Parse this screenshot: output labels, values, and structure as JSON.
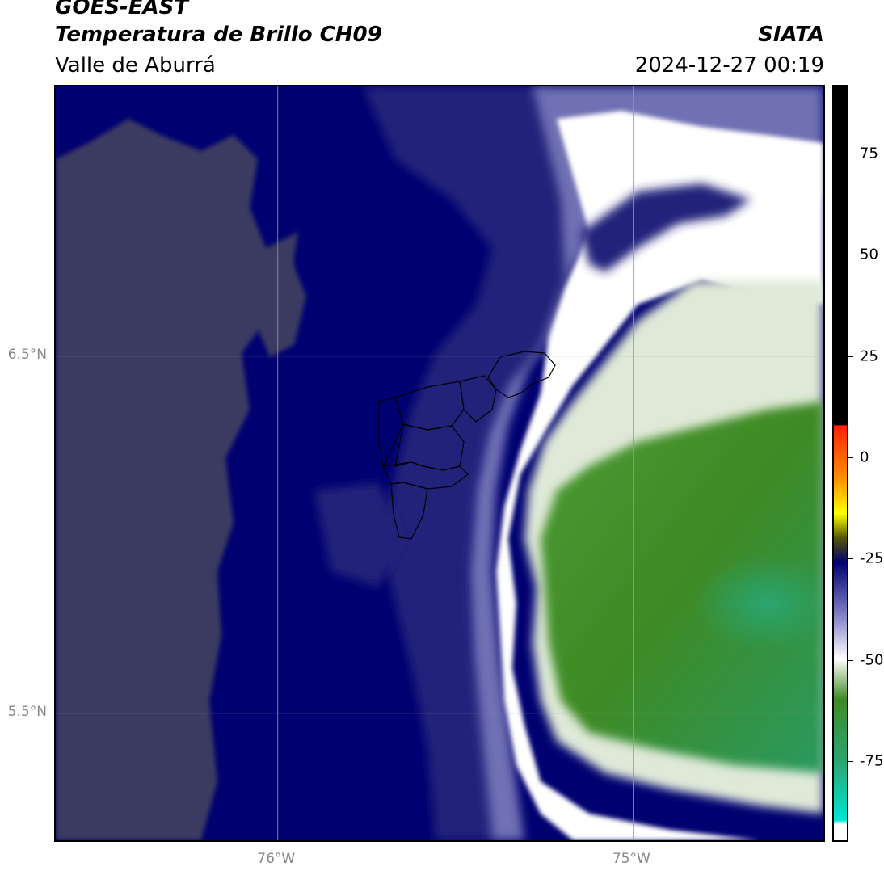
{
  "titles": {
    "satellite": "GOES-EAST",
    "product": "Temperatura de Brillo CH09",
    "region": "Valle de Aburrá",
    "organization": "SIATA",
    "timestamp": "2024-12-27 00:19"
  },
  "map": {
    "lat_ticks": [
      {
        "label": "6.5°N",
        "value": 6.5
      },
      {
        "label": "5.5°N",
        "value": 5.5
      }
    ],
    "lon_ticks": [
      {
        "label": "76°W",
        "value": -76.0
      },
      {
        "label": "75°W",
        "value": -75.0
      }
    ],
    "extent": {
      "lon_min": -76.625,
      "lon_max": -74.455,
      "lat_min": 5.135,
      "lat_max": 7.255
    },
    "grid": true,
    "colors": {
      "dark_navy": "#000070",
      "mid_blue": "#23237a",
      "grey_blue": "#3b3b62",
      "white": "#ffffff",
      "light_green": "#dfe9d8",
      "green": "#3e8a25",
      "teal": "#2aa56f"
    }
  },
  "colorbar": {
    "min": -95,
    "max": 92,
    "ticks": [
      {
        "label": "75",
        "value": 75
      },
      {
        "label": "50",
        "value": 50
      },
      {
        "label": "25",
        "value": 25
      },
      {
        "label": "0",
        "value": 0
      },
      {
        "label": "-25",
        "value": -25
      },
      {
        "label": "-50",
        "value": -50
      },
      {
        "label": "-75",
        "value": -75
      }
    ],
    "stops": [
      {
        "value": 92,
        "color": "#000000"
      },
      {
        "value": 8,
        "color": "#000000"
      },
      {
        "value": 7.9,
        "color": "#ff2000"
      },
      {
        "value": -5,
        "color": "#ff8c00"
      },
      {
        "value": -14,
        "color": "#ffff00"
      },
      {
        "value": -20,
        "color": "#555500"
      },
      {
        "value": -26,
        "color": "#000070"
      },
      {
        "value": -40,
        "color": "#8a8acc"
      },
      {
        "value": -50,
        "color": "#ffffff"
      },
      {
        "value": -60,
        "color": "#3e8a25"
      },
      {
        "value": -75,
        "color": "#2aa56f"
      },
      {
        "value": -90,
        "color": "#00e5d5"
      },
      {
        "value": -91,
        "color": "#ffffff"
      },
      {
        "value": -95,
        "color": "#ffffff"
      }
    ]
  }
}
